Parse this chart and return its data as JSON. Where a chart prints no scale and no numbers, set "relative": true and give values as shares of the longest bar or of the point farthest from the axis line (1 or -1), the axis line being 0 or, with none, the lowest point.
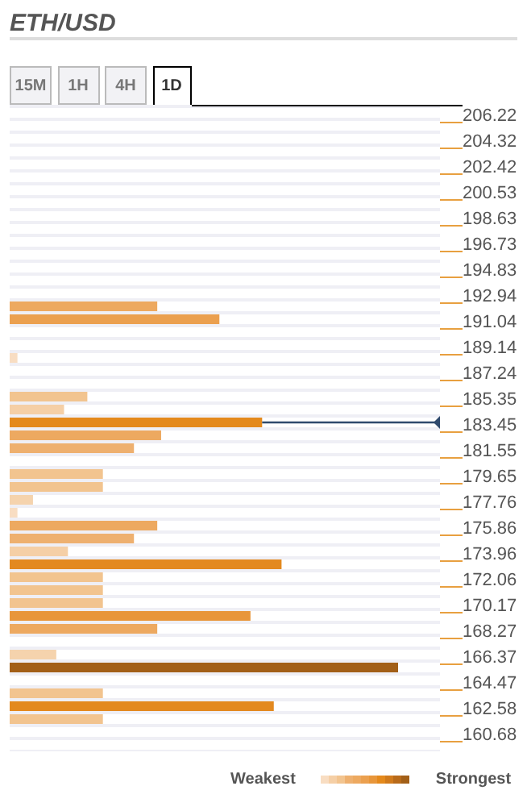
{
  "chart_data": {
    "type": "bar",
    "orientation": "horizontal",
    "relative": true,
    "title": "ETH/USD",
    "annotations": [
      "15M",
      "1H",
      "4H",
      "1D",
      "Weakest",
      "Strongest"
    ],
    "categories": [
      "206.22",
      null,
      "204.32",
      null,
      "202.42",
      null,
      "200.53",
      null,
      "198.63",
      null,
      "196.73",
      null,
      "194.83",
      null,
      "192.94",
      null,
      "191.04",
      null,
      "189.14",
      null,
      "187.24",
      null,
      "185.35",
      null,
      "183.45",
      null,
      "181.55",
      null,
      "179.65",
      null,
      "177.76",
      null,
      "175.86",
      null,
      "173.96",
      null,
      "172.06",
      null,
      "170.17",
      null,
      "168.27",
      null,
      "166.37",
      null,
      "164.47",
      null,
      "162.58",
      null,
      "160.68",
      null
    ],
    "values": [
      null,
      null,
      null,
      null,
      null,
      null,
      null,
      null,
      null,
      null,
      null,
      null,
      null,
      null,
      null,
      0.38,
      0.54,
      null,
      null,
      0.02,
      null,
      null,
      0.2,
      0.14,
      0.65,
      0.39,
      0.32,
      null,
      0.24,
      0.24,
      0.06,
      0.02,
      0.38,
      0.32,
      0.15,
      0.7,
      0.24,
      0.24,
      0.24,
      0.62,
      0.38,
      null,
      0.12,
      1,
      null,
      0.24,
      0.68,
      0.24,
      null,
      null
    ],
    "colors": [
      null,
      null,
      null,
      null,
      null,
      null,
      null,
      null,
      null,
      null,
      null,
      null,
      null,
      null,
      null,
      "#eda960",
      "#eba04f",
      null,
      null,
      "#f8ddc2",
      null,
      null,
      "#f2c48f",
      "#f5cfa6",
      "#e4891c",
      "#eda960",
      "#eeb06f",
      null,
      "#f2c48f",
      "#f2c48f",
      "#f5d3ad",
      "#f8ddc2",
      "#eda960",
      "#eeb06f",
      "#f5cfa6",
      "#e3891f",
      "#f2c48f",
      "#f2c48f",
      "#f2c48f",
      "#e8963a",
      "#eda960",
      null,
      "#f5d3ad",
      "#a25f18",
      null,
      "#f2c48f",
      "#e3891f",
      "#f2c48f",
      null,
      null
    ],
    "ref_lines": [
      {
        "axis": "y",
        "value": "183.45",
        "color": "#2f4a6d"
      }
    ],
    "grid": "y"
  }
}
